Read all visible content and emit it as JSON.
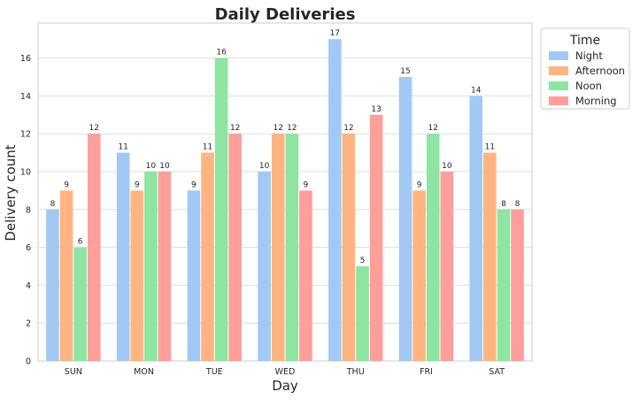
{
  "chart_data": {
    "type": "bar",
    "title": "Daily Deliveries",
    "xlabel": "Day",
    "ylabel": "Delivery count",
    "categories": [
      "SUN",
      "MON",
      "TUE",
      "WED",
      "THU",
      "FRI",
      "SAT"
    ],
    "ylim": [
      0,
      18
    ],
    "yticks": [
      0,
      2,
      4,
      6,
      8,
      10,
      12,
      14,
      16
    ],
    "grid": true,
    "legend": {
      "title": "Time",
      "placement": "outside-top-right"
    },
    "series": [
      {
        "name": " Night",
        "color": "#a1c9f4",
        "values": [
          8,
          11,
          9,
          10,
          17,
          15,
          14
        ]
      },
      {
        "name": "Afternoon",
        "color": "#ffb482",
        "values": [
          9,
          9,
          11,
          12,
          12,
          9,
          11
        ]
      },
      {
        "name": "Noon",
        "color": "#8de5a1",
        "values": [
          6,
          10,
          16,
          12,
          5,
          12,
          8
        ]
      },
      {
        "name": "Morning",
        "color": "#ff9f9b",
        "values": [
          12,
          10,
          12,
          9,
          13,
          10,
          8
        ]
      }
    ]
  }
}
